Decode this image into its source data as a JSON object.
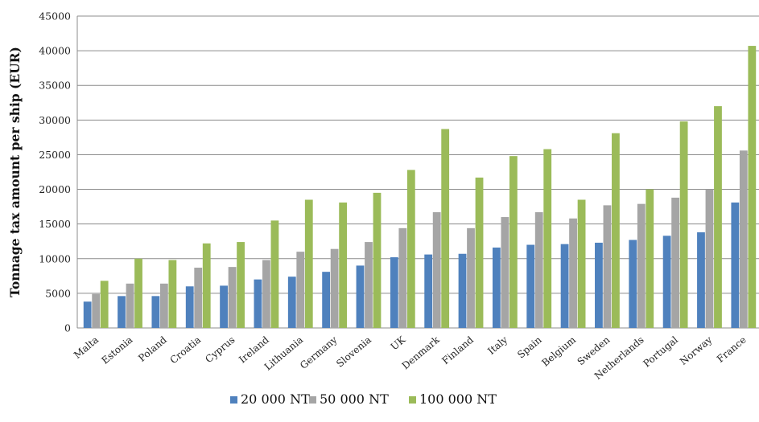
{
  "chart_data": {
    "type": "bar",
    "ylabel": "Tonnage tax amount per ship (EUR)",
    "xlabel": "",
    "ylim": [
      0,
      45000
    ],
    "yticks": [
      0,
      5000,
      10000,
      15000,
      20000,
      25000,
      30000,
      35000,
      40000,
      45000
    ],
    "grid": true,
    "legend_position": "bottom",
    "categories": [
      "Malta",
      "Estonia",
      "Poland",
      "Croatia",
      "Cyprus",
      "Ireland",
      "Lithuania",
      "Germany",
      "Slovenia",
      "UK",
      "Denmark",
      "Finland",
      "Italy",
      "Spain",
      "Belgium",
      "Sweden",
      "Netherlands",
      "Portugal",
      "Norway",
      "France"
    ],
    "series": [
      {
        "name": "20 000 NT",
        "color": "#4f81bd",
        "values": [
          3800,
          4600,
          4600,
          6000,
          6100,
          7000,
          7400,
          8100,
          9000,
          10200,
          10600,
          10700,
          11600,
          12000,
          12100,
          12300,
          12700,
          13300,
          13800,
          18100
        ]
      },
      {
        "name": "50 000 NT",
        "color": "#a5a5a5",
        "values": [
          4900,
          6400,
          6400,
          8700,
          8800,
          9800,
          11000,
          11400,
          12400,
          14400,
          16700,
          14400,
          16000,
          16700,
          15800,
          17700,
          17900,
          18800,
          20000,
          25600
        ]
      },
      {
        "name": "100 000 NT",
        "color": "#9bbb59",
        "values": [
          6800,
          10000,
          9800,
          12200,
          12400,
          15500,
          18500,
          18100,
          19500,
          22800,
          28700,
          21700,
          24800,
          25800,
          18500,
          28100,
          20000,
          29800,
          32000,
          40700
        ]
      }
    ]
  }
}
